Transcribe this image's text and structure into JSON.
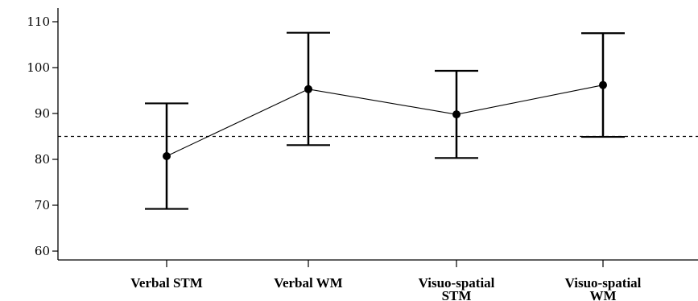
{
  "chart_data": {
    "type": "line",
    "title": "",
    "xlabel": "",
    "ylabel": "",
    "categories": [
      [
        "Verbal STM"
      ],
      [
        "Verbal WM"
      ],
      [
        "Visuo-spatial",
        "STM"
      ],
      [
        "Visuo-spatial",
        "WM"
      ]
    ],
    "series": [
      {
        "values": [
          80.7,
          95.3,
          89.8,
          96.2
        ],
        "error_low": [
          69.2,
          83.1,
          80.3,
          84.9
        ],
        "error_high": [
          92.2,
          107.6,
          99.3,
          107.5
        ]
      }
    ],
    "reference_line": {
      "value": 85,
      "style": "dashed"
    },
    "yticks": [
      60,
      70,
      80,
      90,
      100,
      110
    ],
    "ylim": [
      55,
      112
    ],
    "grid": false,
    "legend": "none"
  }
}
